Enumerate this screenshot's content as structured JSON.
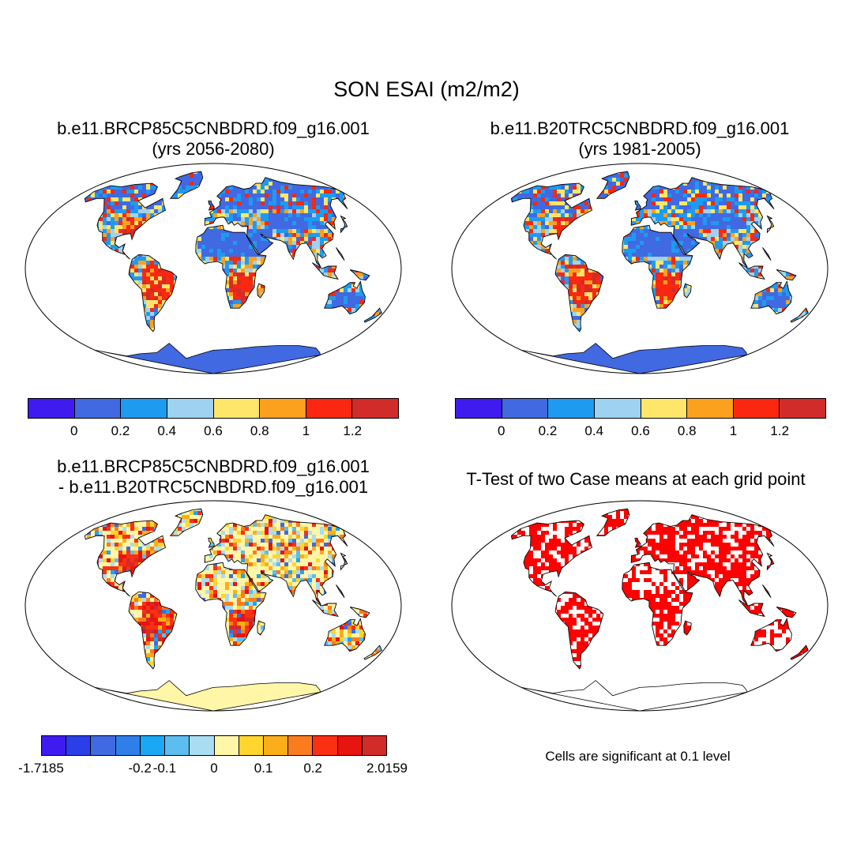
{
  "title": "SON ESAI (m2/m2)",
  "panels": [
    {
      "id": "p1",
      "title_line1": "b.e11.BRCP85C5CNBDRD.f09_g16.001",
      "title_line2": "(yrs 2056-2080)",
      "type": "field"
    },
    {
      "id": "p2",
      "title_line1": "b.e11.B20TRC5CNBDRD.f09_g16.001",
      "title_line2": "(yrs 1981-2005)",
      "type": "field"
    },
    {
      "id": "p3",
      "title_line1": "b.e11.BRCP85C5CNBDRD.f09_g16.001",
      "title_line2": "- b.e11.B20TRC5CNBDRD.f09_g16.001",
      "type": "difference"
    },
    {
      "id": "p4",
      "title_line1": "T-Test of two Case means at each grid point",
      "title_line2": "",
      "type": "significance"
    }
  ],
  "colorbars": {
    "field": {
      "colors": [
        "#3f1bf0",
        "#4169e1",
        "#1e9bf0",
        "#9fd2f0",
        "#fde66a",
        "#fca11e",
        "#fb2710",
        "#d12b2a"
      ],
      "labels": [
        "0",
        "0.2",
        "0.4",
        "0.6",
        "0.8",
        "1",
        "1.2"
      ]
    },
    "difference": {
      "colors": [
        "#3f1bf0",
        "#2a3fe8",
        "#4169e1",
        "#2f7fea",
        "#1aa7f3",
        "#5dbdee",
        "#aadcf2",
        "#fff6a8",
        "#ffd52e",
        "#fcae1a",
        "#fb7c1c",
        "#fb2f12",
        "#e8140f",
        "#d12b2a"
      ],
      "labels": [
        "-1.7185",
        "-0.2",
        "-0.1",
        "0",
        "0.1",
        "0.2",
        "2.0159"
      ]
    }
  },
  "significance_note": "Cells are significant at 0.1 level",
  "significance_color": "#ff0000",
  "ocean_color": "#ffffff",
  "antarctica_color": {
    "field": "#4169e1",
    "difference": "#fff6a8",
    "significance": "#ffffff"
  }
}
